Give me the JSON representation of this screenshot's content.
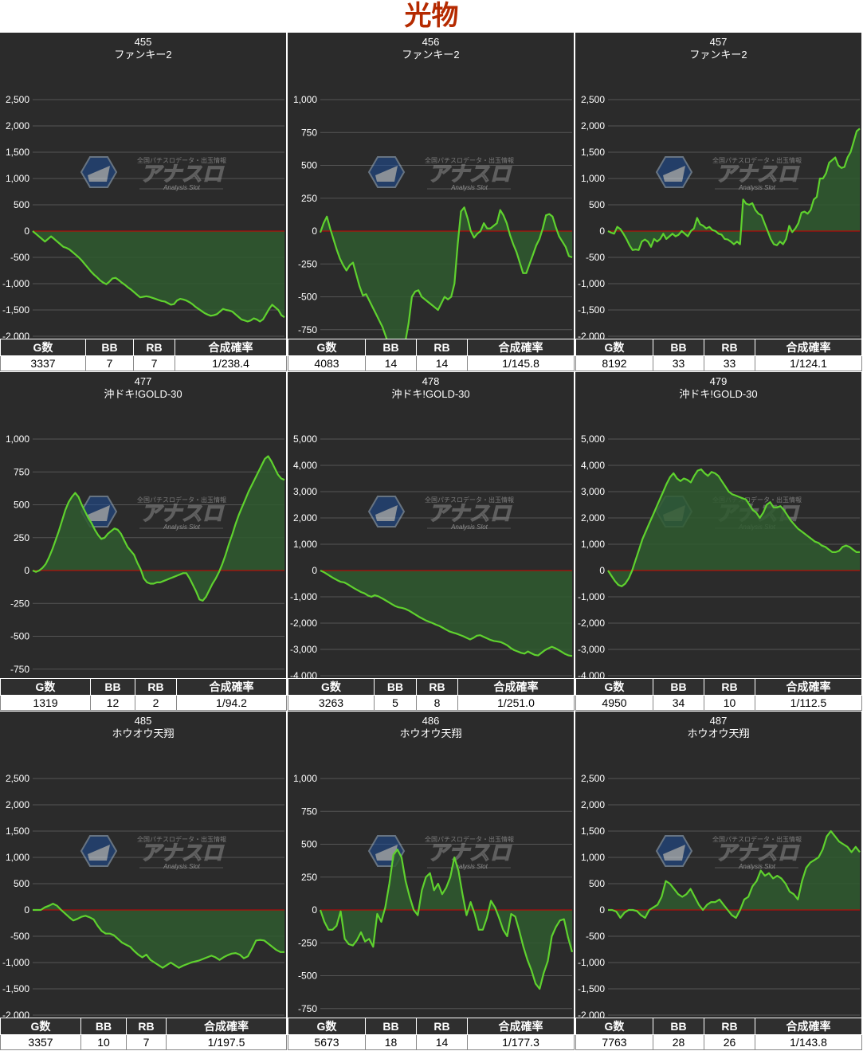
{
  "title": "光物",
  "headers": [
    "G数",
    "BB",
    "RB",
    "合成確率"
  ],
  "watermark": {
    "brand": "アナスロ",
    "tagline": "全国パチスロデータ・出玉情報",
    "sub": "Analysis Slot"
  },
  "colors": {
    "line": "#5fd22e",
    "fill": "#2f5a2f",
    "zero": "#d00000",
    "grid": "#555555",
    "background": "#2b2b2b",
    "title": "#b52a00"
  },
  "chart_data": [
    {
      "type": "area",
      "machine": "455",
      "model": "ファンキー2",
      "ylim": [
        -2500,
        2500
      ],
      "yticks": [
        2500,
        2000,
        1500,
        1000,
        500,
        0,
        -500,
        -1000,
        -1500,
        -2000,
        -2500
      ],
      "values": [
        0,
        -50,
        -100,
        -150,
        -200,
        -150,
        -100,
        -150,
        -200,
        -250,
        -300,
        -320,
        -350,
        -400,
        -450,
        -500,
        -560,
        -630,
        -700,
        -770,
        -830,
        -880,
        -940,
        -980,
        -1010,
        -960,
        -900,
        -890,
        -930,
        -980,
        -1020,
        -1070,
        -1110,
        -1160,
        -1210,
        -1260,
        -1250,
        -1240,
        -1250,
        -1270,
        -1290,
        -1310,
        -1330,
        -1340,
        -1370,
        -1400,
        -1390,
        -1320,
        -1290,
        -1300,
        -1320,
        -1350,
        -1390,
        -1440,
        -1480,
        -1520,
        -1560,
        -1590,
        -1610,
        -1600,
        -1580,
        -1530,
        -1480,
        -1500,
        -1510,
        -1530,
        -1580,
        -1630,
        -1680,
        -1700,
        -1720,
        -1700,
        -1660,
        -1680,
        -1720,
        -1680,
        -1580,
        -1480,
        -1400,
        -1450,
        -1500,
        -1600,
        -1640
      ],
      "stats": {
        "g": "3337",
        "bb": "7",
        "rb": "7",
        "prob": "1/238.4"
      }
    },
    {
      "type": "area",
      "machine": "456",
      "model": "ファンキー2",
      "ylim": [
        -1000,
        1000
      ],
      "yticks": [
        1000,
        750,
        500,
        250,
        0,
        -250,
        -500,
        -750,
        -1000
      ],
      "values": [
        -10,
        60,
        110,
        20,
        -60,
        -140,
        -210,
        -260,
        -300,
        -260,
        -240,
        -330,
        -420,
        -490,
        -480,
        -530,
        -580,
        -630,
        -680,
        -730,
        -800,
        -870,
        -930,
        -970,
        -830,
        -850,
        -840,
        -700,
        -500,
        -460,
        -450,
        -500,
        -520,
        -540,
        -560,
        -580,
        -600,
        -550,
        -500,
        -520,
        -500,
        -400,
        -100,
        150,
        180,
        100,
        0,
        -50,
        -20,
        0,
        60,
        20,
        20,
        40,
        60,
        160,
        120,
        60,
        -30,
        -100,
        -160,
        -240,
        -320,
        -320,
        -250,
        -180,
        -110,
        -60,
        20,
        120,
        130,
        110,
        30,
        -40,
        -80,
        -120,
        -190,
        -200
      ],
      "stats": {
        "g": "4083",
        "bb": "14",
        "rb": "14",
        "prob": "1/145.8"
      }
    },
    {
      "type": "area",
      "machine": "457",
      "model": "ファンキー2",
      "ylim": [
        -2500,
        2500
      ],
      "yticks": [
        2500,
        2000,
        1500,
        1000,
        500,
        0,
        -500,
        -1000,
        -1500,
        -2000,
        -2500
      ],
      "values": [
        0,
        -30,
        -50,
        80,
        40,
        -50,
        -150,
        -270,
        -360,
        -350,
        -360,
        -200,
        -160,
        -200,
        -300,
        -150,
        -200,
        -150,
        -50,
        -150,
        -100,
        -50,
        -100,
        -70,
        0,
        -50,
        -100,
        0,
        50,
        250,
        130,
        100,
        50,
        80,
        20,
        0,
        -50,
        -70,
        -150,
        -160,
        -200,
        -250,
        -200,
        -250,
        600,
        520,
        500,
        530,
        400,
        330,
        300,
        150,
        0,
        -150,
        -250,
        -270,
        -200,
        -250,
        -150,
        100,
        -20,
        50,
        150,
        350,
        370,
        330,
        400,
        600,
        650,
        1000,
        1000,
        1100,
        1300,
        1350,
        1400,
        1250,
        1200,
        1220,
        1400,
        1500,
        1700,
        1900,
        1950
      ],
      "stats": {
        "g": "8192",
        "bb": "33",
        "rb": "33",
        "prob": "1/124.1"
      }
    },
    {
      "type": "area",
      "machine": "477",
      "model": "沖ドキ!GOLD-30",
      "ylim": [
        -1000,
        1000
      ],
      "yticks": [
        1000,
        750,
        500,
        250,
        0,
        -250,
        -500,
        -750,
        -1000
      ],
      "values": [
        0,
        -10,
        0,
        20,
        50,
        100,
        160,
        230,
        300,
        380,
        460,
        520,
        560,
        590,
        560,
        500,
        450,
        400,
        360,
        310,
        270,
        240,
        250,
        280,
        300,
        320,
        310,
        280,
        230,
        180,
        150,
        120,
        60,
        10,
        -60,
        -90,
        -100,
        -100,
        -90,
        -90,
        -80,
        -70,
        -60,
        -50,
        -40,
        -30,
        -20,
        -20,
        -60,
        -110,
        -160,
        -220,
        -230,
        -200,
        -150,
        -100,
        -60,
        -10,
        50,
        120,
        200,
        270,
        350,
        420,
        480,
        540,
        600,
        650,
        700,
        750,
        800,
        850,
        870,
        830,
        780,
        730,
        700,
        690
      ],
      "stats": {
        "g": "1319",
        "bb": "12",
        "rb": "2",
        "prob": "1/94.2"
      }
    },
    {
      "type": "area",
      "machine": "478",
      "model": "沖ドキ!GOLD-30",
      "ylim": [
        -5000,
        5000
      ],
      "yticks": [
        5000,
        4000,
        3000,
        2000,
        1000,
        0,
        -1000,
        -2000,
        -3000,
        -4000,
        -5000
      ],
      "values": [
        0,
        -60,
        -140,
        -220,
        -300,
        -370,
        -430,
        -450,
        -520,
        -600,
        -680,
        -750,
        -820,
        -870,
        -950,
        -1000,
        -940,
        -980,
        -1050,
        -1120,
        -1200,
        -1280,
        -1350,
        -1400,
        -1420,
        -1460,
        -1520,
        -1600,
        -1680,
        -1760,
        -1830,
        -1900,
        -1950,
        -2000,
        -2060,
        -2110,
        -2180,
        -2250,
        -2320,
        -2360,
        -2400,
        -2450,
        -2500,
        -2560,
        -2620,
        -2560,
        -2480,
        -2460,
        -2520,
        -2580,
        -2640,
        -2680,
        -2700,
        -2720,
        -2780,
        -2850,
        -2950,
        -3030,
        -3080,
        -3130,
        -3160,
        -3080,
        -3150,
        -3210,
        -3230,
        -3130,
        -3030,
        -2960,
        -2900,
        -2950,
        -3020,
        -3100,
        -3180,
        -3230,
        -3250
      ],
      "stats": {
        "g": "3263",
        "bb": "5",
        "rb": "8",
        "prob": "1/251.0"
      }
    },
    {
      "type": "area",
      "machine": "479",
      "model": "沖ドキ!GOLD-30",
      "ylim": [
        -5000,
        5000
      ],
      "yticks": [
        5000,
        4000,
        3000,
        2000,
        1000,
        0,
        -1000,
        -2000,
        -3000,
        -4000,
        -5000
      ],
      "values": [
        0,
        -200,
        -400,
        -550,
        -600,
        -500,
        -300,
        0,
        400,
        800,
        1200,
        1500,
        1800,
        2100,
        2400,
        2700,
        3000,
        3300,
        3550,
        3700,
        3500,
        3400,
        3500,
        3450,
        3350,
        3600,
        3800,
        3850,
        3700,
        3600,
        3750,
        3700,
        3600,
        3400,
        3200,
        3000,
        2900,
        2850,
        2800,
        2750,
        2700,
        2500,
        2300,
        2200,
        2000,
        2200,
        2500,
        2600,
        2400,
        2400,
        2450,
        2300,
        2100,
        1900,
        1750,
        1600,
        1500,
        1400,
        1300,
        1200,
        1100,
        1050,
        950,
        900,
        800,
        700,
        700,
        750,
        900,
        950,
        900,
        800,
        700,
        700
      ],
      "stats": {
        "g": "4950",
        "bb": "34",
        "rb": "10",
        "prob": "1/112.5"
      }
    },
    {
      "type": "area",
      "machine": "485",
      "model": "ホウオウ天翔",
      "ylim": [
        -2500,
        2500
      ],
      "yticks": [
        2500,
        2000,
        1500,
        1000,
        500,
        0,
        -500,
        -1000,
        -1500,
        -2000,
        -2500
      ],
      "values": [
        0,
        0,
        0,
        50,
        80,
        120,
        80,
        0,
        -70,
        -140,
        -200,
        -170,
        -130,
        -110,
        -140,
        -180,
        -300,
        -400,
        -450,
        -450,
        -480,
        -550,
        -620,
        -660,
        -700,
        -780,
        -850,
        -900,
        -850,
        -950,
        -1000,
        -1050,
        -1100,
        -1050,
        -1000,
        -1050,
        -1100,
        -1060,
        -1030,
        -1000,
        -980,
        -960,
        -930,
        -900,
        -870,
        -900,
        -950,
        -900,
        -860,
        -830,
        -820,
        -850,
        -920,
        -880,
        -740,
        -580,
        -570,
        -580,
        -640,
        -700,
        -760,
        -800,
        -800
      ],
      "stats": {
        "g": "3357",
        "bb": "10",
        "rb": "7",
        "prob": "1/197.5"
      }
    },
    {
      "type": "area",
      "machine": "486",
      "model": "ホウオウ天翔",
      "ylim": [
        -1000,
        1000
      ],
      "yticks": [
        1000,
        750,
        500,
        250,
        0,
        -250,
        -500,
        -750,
        -1000
      ],
      "values": [
        0,
        -90,
        -150,
        -150,
        -120,
        -10,
        -220,
        -260,
        -270,
        -230,
        -170,
        -240,
        -220,
        -280,
        -30,
        -90,
        20,
        200,
        420,
        460,
        400,
        220,
        100,
        0,
        -40,
        150,
        250,
        280,
        150,
        200,
        120,
        170,
        250,
        400,
        300,
        120,
        -40,
        60,
        -30,
        -150,
        -150,
        -60,
        70,
        20,
        -60,
        -150,
        -200,
        -30,
        -50,
        -160,
        -280,
        -380,
        -460,
        -560,
        -600,
        -480,
        -390,
        -200,
        -130,
        -80,
        -70,
        -210,
        -320
      ],
      "stats": {
        "g": "5673",
        "bb": "18",
        "rb": "14",
        "prob": "1/177.3"
      }
    },
    {
      "type": "area",
      "machine": "487",
      "model": "ホウオウ天翔",
      "ylim": [
        -2500,
        2500
      ],
      "yticks": [
        2500,
        2000,
        1500,
        1000,
        500,
        0,
        -500,
        -1000,
        -1500,
        -2000,
        -2500
      ],
      "values": [
        0,
        0,
        -30,
        -150,
        -50,
        0,
        0,
        -20,
        -100,
        -150,
        0,
        50,
        100,
        250,
        550,
        500,
        400,
        300,
        250,
        300,
        400,
        250,
        100,
        0,
        100,
        150,
        150,
        200,
        100,
        0,
        -100,
        -150,
        0,
        200,
        250,
        450,
        550,
        750,
        650,
        700,
        600,
        650,
        600,
        500,
        350,
        300,
        200,
        550,
        800,
        900,
        950,
        1000,
        1150,
        1400,
        1500,
        1400,
        1300,
        1250,
        1200,
        1100,
        1200,
        1100
      ],
      "stats": {
        "g": "7763",
        "bb": "28",
        "rb": "26",
        "prob": "1/143.8"
      }
    }
  ]
}
